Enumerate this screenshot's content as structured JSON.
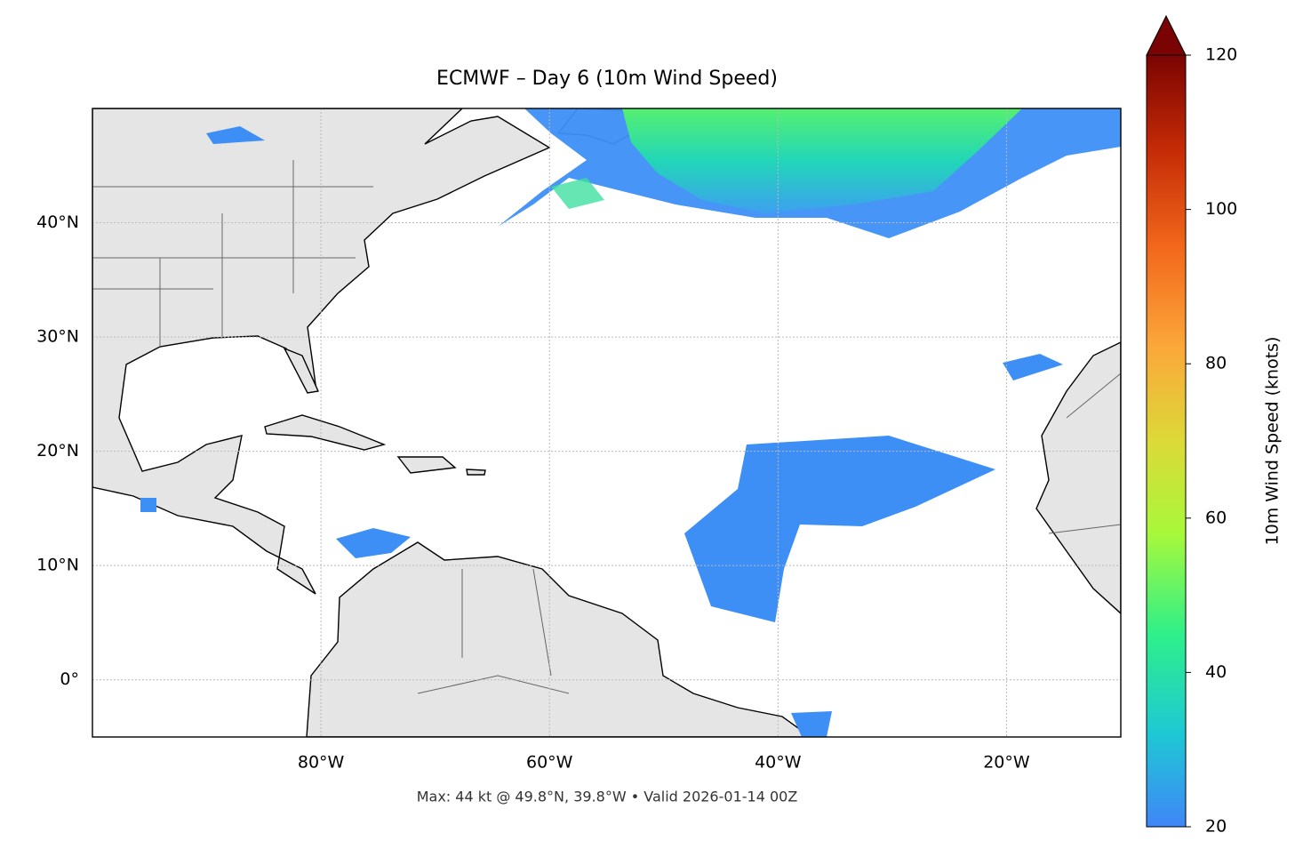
{
  "map": {
    "title": "ECMWF – Day 6 (10m Wind Speed)",
    "footer": "Max: 44 kt @ 49.8°N, 39.8°W • Valid 2026-01-14 00Z",
    "xlim": [
      -100,
      -10
    ],
    "ylim": [
      -5,
      50
    ],
    "xticks": [
      {
        "value": -80,
        "label": "80°W"
      },
      {
        "value": -60,
        "label": "60°W"
      },
      {
        "value": -40,
        "label": "40°W"
      },
      {
        "value": -20,
        "label": "20°W"
      }
    ],
    "yticks": [
      {
        "value": 40,
        "label": "40°N"
      },
      {
        "value": 30,
        "label": "30°N"
      },
      {
        "value": 20,
        "label": "20°N"
      },
      {
        "value": 10,
        "label": "10°N"
      },
      {
        "value": 0,
        "label": "0°"
      }
    ],
    "grid": true,
    "colorbar": {
      "label": "10m Wind Speed (knots)",
      "lim": [
        20,
        120
      ],
      "ticks": [
        20,
        40,
        60,
        80,
        100,
        120
      ]
    }
  }
}
